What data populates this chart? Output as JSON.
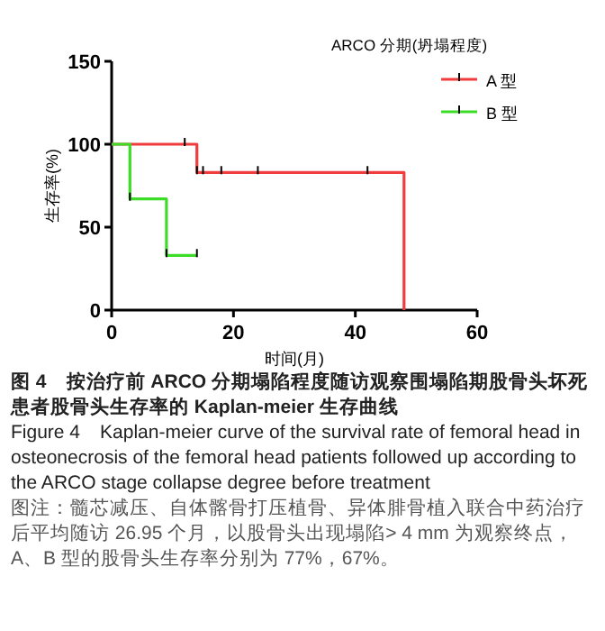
{
  "chart_data": {
    "type": "step",
    "title": "图 4　按治疗前 ARCO 分期塌陷程度随访观察围塌陷期股骨头坏死患者股骨头生存率的 Kaplan-meier 生存曲线",
    "subtitle": "Figure 4　Kaplan-meier curve of the survival rate of femoral head in osteonecrosis of the femoral head patients followed up according to the ARCO stage collapse degree before treatment",
    "annotations": [
      "图注：髓芯减压、自体髂骨打压植骨、异体腓骨植入联合中药治疗后平均随访 26.95 个月，以股骨头出现塌陷> 4 mm 为观察终点，A、B 型的股骨头生存率分别为 77%，67%。"
    ],
    "xlabel": "时间(月)",
    "ylabel": "生存率(%)",
    "legend_title": "ARCO 分期(坍塌程度)",
    "series": [
      {
        "name": "A 型",
        "color": "#f03c3c",
        "x": [
          0,
          12,
          14,
          15,
          18,
          24,
          42,
          48
        ],
        "values": [
          100,
          100,
          83,
          83,
          83,
          83,
          83,
          0
        ]
      },
      {
        "name": "B 型",
        "color": "#3cdc28",
        "x": [
          0,
          3,
          9,
          14
        ],
        "values": [
          100,
          67,
          33,
          33
        ]
      }
    ],
    "xlim": [
      0,
      60
    ],
    "xticks": [
      0,
      20,
      40,
      60
    ],
    "ylim": [
      0,
      150
    ],
    "yticks": [
      0,
      50,
      100,
      150
    ],
    "legend": "top right",
    "grid": false
  }
}
